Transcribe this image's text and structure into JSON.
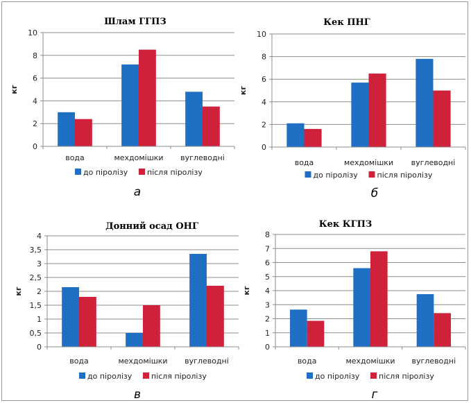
{
  "panel_letters": [
    "а",
    "б",
    "в",
    "г"
  ],
  "chart_data": [
    {
      "type": "bar",
      "title": "Шлам ГГПЗ",
      "ylabel": "кг",
      "ylim": [
        0,
        10
      ],
      "yticks": [
        "0",
        "2",
        "4",
        "6",
        "8",
        "10"
      ],
      "ytick_values": [
        0,
        2,
        4,
        6,
        8,
        10
      ],
      "categories": [
        "вода",
        "мехдомішки",
        "вуглеводні"
      ],
      "series": [
        {
          "name": "до піролізу",
          "color": "#1f6fc5",
          "values": [
            3.0,
            7.2,
            4.8
          ]
        },
        {
          "name": "після піролізу",
          "color": "#d0213a",
          "values": [
            2.4,
            8.5,
            3.5
          ]
        }
      ],
      "grid": true,
      "legend_position": "bottom"
    },
    {
      "type": "bar",
      "title": "Кек ПНГ",
      "ylabel": "кг",
      "ylim": [
        0,
        10
      ],
      "yticks": [
        "0",
        "2",
        "4",
        "6",
        "8",
        "10"
      ],
      "ytick_values": [
        0,
        2,
        4,
        6,
        8,
        10
      ],
      "categories": [
        "вода",
        "мехдомішки",
        "вуглеводні"
      ],
      "series": [
        {
          "name": "до піролізу",
          "color": "#1f6fc5",
          "values": [
            2.1,
            5.7,
            7.8
          ]
        },
        {
          "name": "після піролізу",
          "color": "#d0213a",
          "values": [
            1.6,
            6.5,
            5.0
          ]
        }
      ],
      "grid": true,
      "legend_position": "bottom"
    },
    {
      "type": "bar",
      "title": "Донний осад ОНГ",
      "ylabel": "кг",
      "ylim": [
        0,
        4
      ],
      "yticks": [
        "0",
        "0,5",
        "1",
        "1,5",
        "2",
        "2,5",
        "3",
        "3,5",
        "4"
      ],
      "ytick_values": [
        0,
        0.5,
        1,
        1.5,
        2,
        2.5,
        3,
        3.5,
        4
      ],
      "categories": [
        "вода",
        "мехдомішки",
        "вуглеводні"
      ],
      "series": [
        {
          "name": "до піролізу",
          "color": "#1f6fc5",
          "values": [
            2.15,
            0.5,
            3.35
          ]
        },
        {
          "name": "після піролізу",
          "color": "#d0213a",
          "values": [
            1.8,
            1.5,
            2.2
          ]
        }
      ],
      "grid": true,
      "legend_position": "bottom"
    },
    {
      "type": "bar",
      "title": "Кек КГПЗ",
      "ylabel": "кг",
      "ylim": [
        0,
        8
      ],
      "yticks": [
        "0",
        "1",
        "2",
        "3",
        "4",
        "5",
        "6",
        "7",
        "8"
      ],
      "ytick_values": [
        0,
        1,
        2,
        3,
        4,
        5,
        6,
        7,
        8
      ],
      "categories": [
        "вода",
        "мехдомішки",
        "вуглеводні"
      ],
      "series": [
        {
          "name": "до піролізу",
          "color": "#1f6fc5",
          "values": [
            2.65,
            5.6,
            3.75
          ]
        },
        {
          "name": "після піролізу",
          "color": "#d0213a",
          "values": [
            1.85,
            6.8,
            2.4
          ]
        }
      ],
      "grid": true,
      "legend_position": "bottom"
    }
  ]
}
